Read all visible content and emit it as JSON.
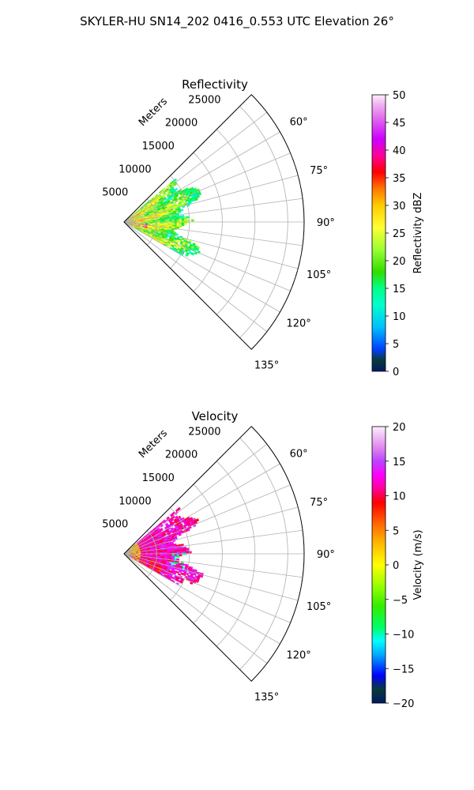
{
  "figure": {
    "suptitle": "SKYLER-HU  SN14_202  0416_0.553 UTC Elevation 26°"
  },
  "chart_data": [
    {
      "type": "heatmap",
      "projection": "polar-sector",
      "title": "Reflectivity",
      "range_label": "Meters",
      "range_ticks": [
        5000,
        10000,
        15000,
        20000,
        25000
      ],
      "range_tick_labels": [
        "5000",
        "10000",
        "15000",
        "20000",
        "25000"
      ],
      "range_max": 27500,
      "azimuth_range": [
        45,
        135
      ],
      "azimuth_ticks": [
        60,
        75,
        90,
        105,
        120,
        135
      ],
      "azimuth_tick_labels": [
        "60°",
        "75°",
        "90°",
        "105°",
        "120°",
        "135°"
      ],
      "grid": true,
      "colorbar": {
        "label": "Reflectivity dBZ",
        "min": 0,
        "max": 50,
        "ticks": [
          0,
          5,
          10,
          15,
          20,
          25,
          30,
          35,
          40,
          45,
          50
        ],
        "tick_labels": [
          "0",
          "5",
          "10",
          "15",
          "20",
          "25",
          "30",
          "35",
          "40",
          "45",
          "50"
        ],
        "stops": [
          [
            0,
            "#001a66"
          ],
          [
            2,
            "#0a3a3a"
          ],
          [
            4,
            "#0040ff"
          ],
          [
            8,
            "#00c0ff"
          ],
          [
            12,
            "#00ffcc"
          ],
          [
            15,
            "#00ff88"
          ],
          [
            18,
            "#33dd00"
          ],
          [
            22,
            "#99ff33"
          ],
          [
            26,
            "#ffff33"
          ],
          [
            30,
            "#ffcc00"
          ],
          [
            33,
            "#ff7700"
          ],
          [
            36,
            "#ff0000"
          ],
          [
            39,
            "#ff0099"
          ],
          [
            42,
            "#cc00ff"
          ],
          [
            45,
            "#dd55ee"
          ],
          [
            48,
            "#f0aaf0"
          ],
          [
            50,
            "#fdeefd"
          ]
        ]
      },
      "echo_extent_m": [
        0,
        12500
      ],
      "echo_azimuth_extent": [
        50,
        120
      ]
    },
    {
      "type": "heatmap",
      "projection": "polar-sector",
      "title": "Velocity",
      "range_label": "Meters",
      "range_ticks": [
        5000,
        10000,
        15000,
        20000,
        25000
      ],
      "range_tick_labels": [
        "5000",
        "10000",
        "15000",
        "20000",
        "25000"
      ],
      "range_max": 27500,
      "azimuth_range": [
        45,
        135
      ],
      "azimuth_ticks": [
        60,
        75,
        90,
        105,
        120,
        135
      ],
      "azimuth_tick_labels": [
        "60°",
        "75°",
        "90°",
        "105°",
        "120°",
        "135°"
      ],
      "grid": true,
      "colorbar": {
        "label": "Velocity (m/s)",
        "min": -20,
        "max": 20,
        "ticks": [
          -20,
          -15,
          -10,
          -5,
          0,
          5,
          10,
          15,
          20
        ],
        "tick_labels": [
          "−20",
          "−15",
          "−10",
          "−5",
          "0",
          "5",
          "10",
          "15",
          "20"
        ],
        "stops": [
          [
            -20,
            "#001a66"
          ],
          [
            -18,
            "#0a3a3a"
          ],
          [
            -16,
            "#0000ff"
          ],
          [
            -13,
            "#00aaff"
          ],
          [
            -11,
            "#00ffff"
          ],
          [
            -9,
            "#00ff66"
          ],
          [
            -6,
            "#33ee00"
          ],
          [
            -3,
            "#99ff00"
          ],
          [
            0,
            "#ffff00"
          ],
          [
            3,
            "#ffbb00"
          ],
          [
            6,
            "#ff6600"
          ],
          [
            9,
            "#ff0000"
          ],
          [
            11,
            "#ff0099"
          ],
          [
            13,
            "#ff00ff"
          ],
          [
            15,
            "#bb44ff"
          ],
          [
            17,
            "#e088ee"
          ],
          [
            20,
            "#fdeefd"
          ]
        ]
      },
      "echo_extent_m": [
        0,
        12500
      ],
      "echo_azimuth_extent": [
        50,
        120
      ]
    }
  ]
}
